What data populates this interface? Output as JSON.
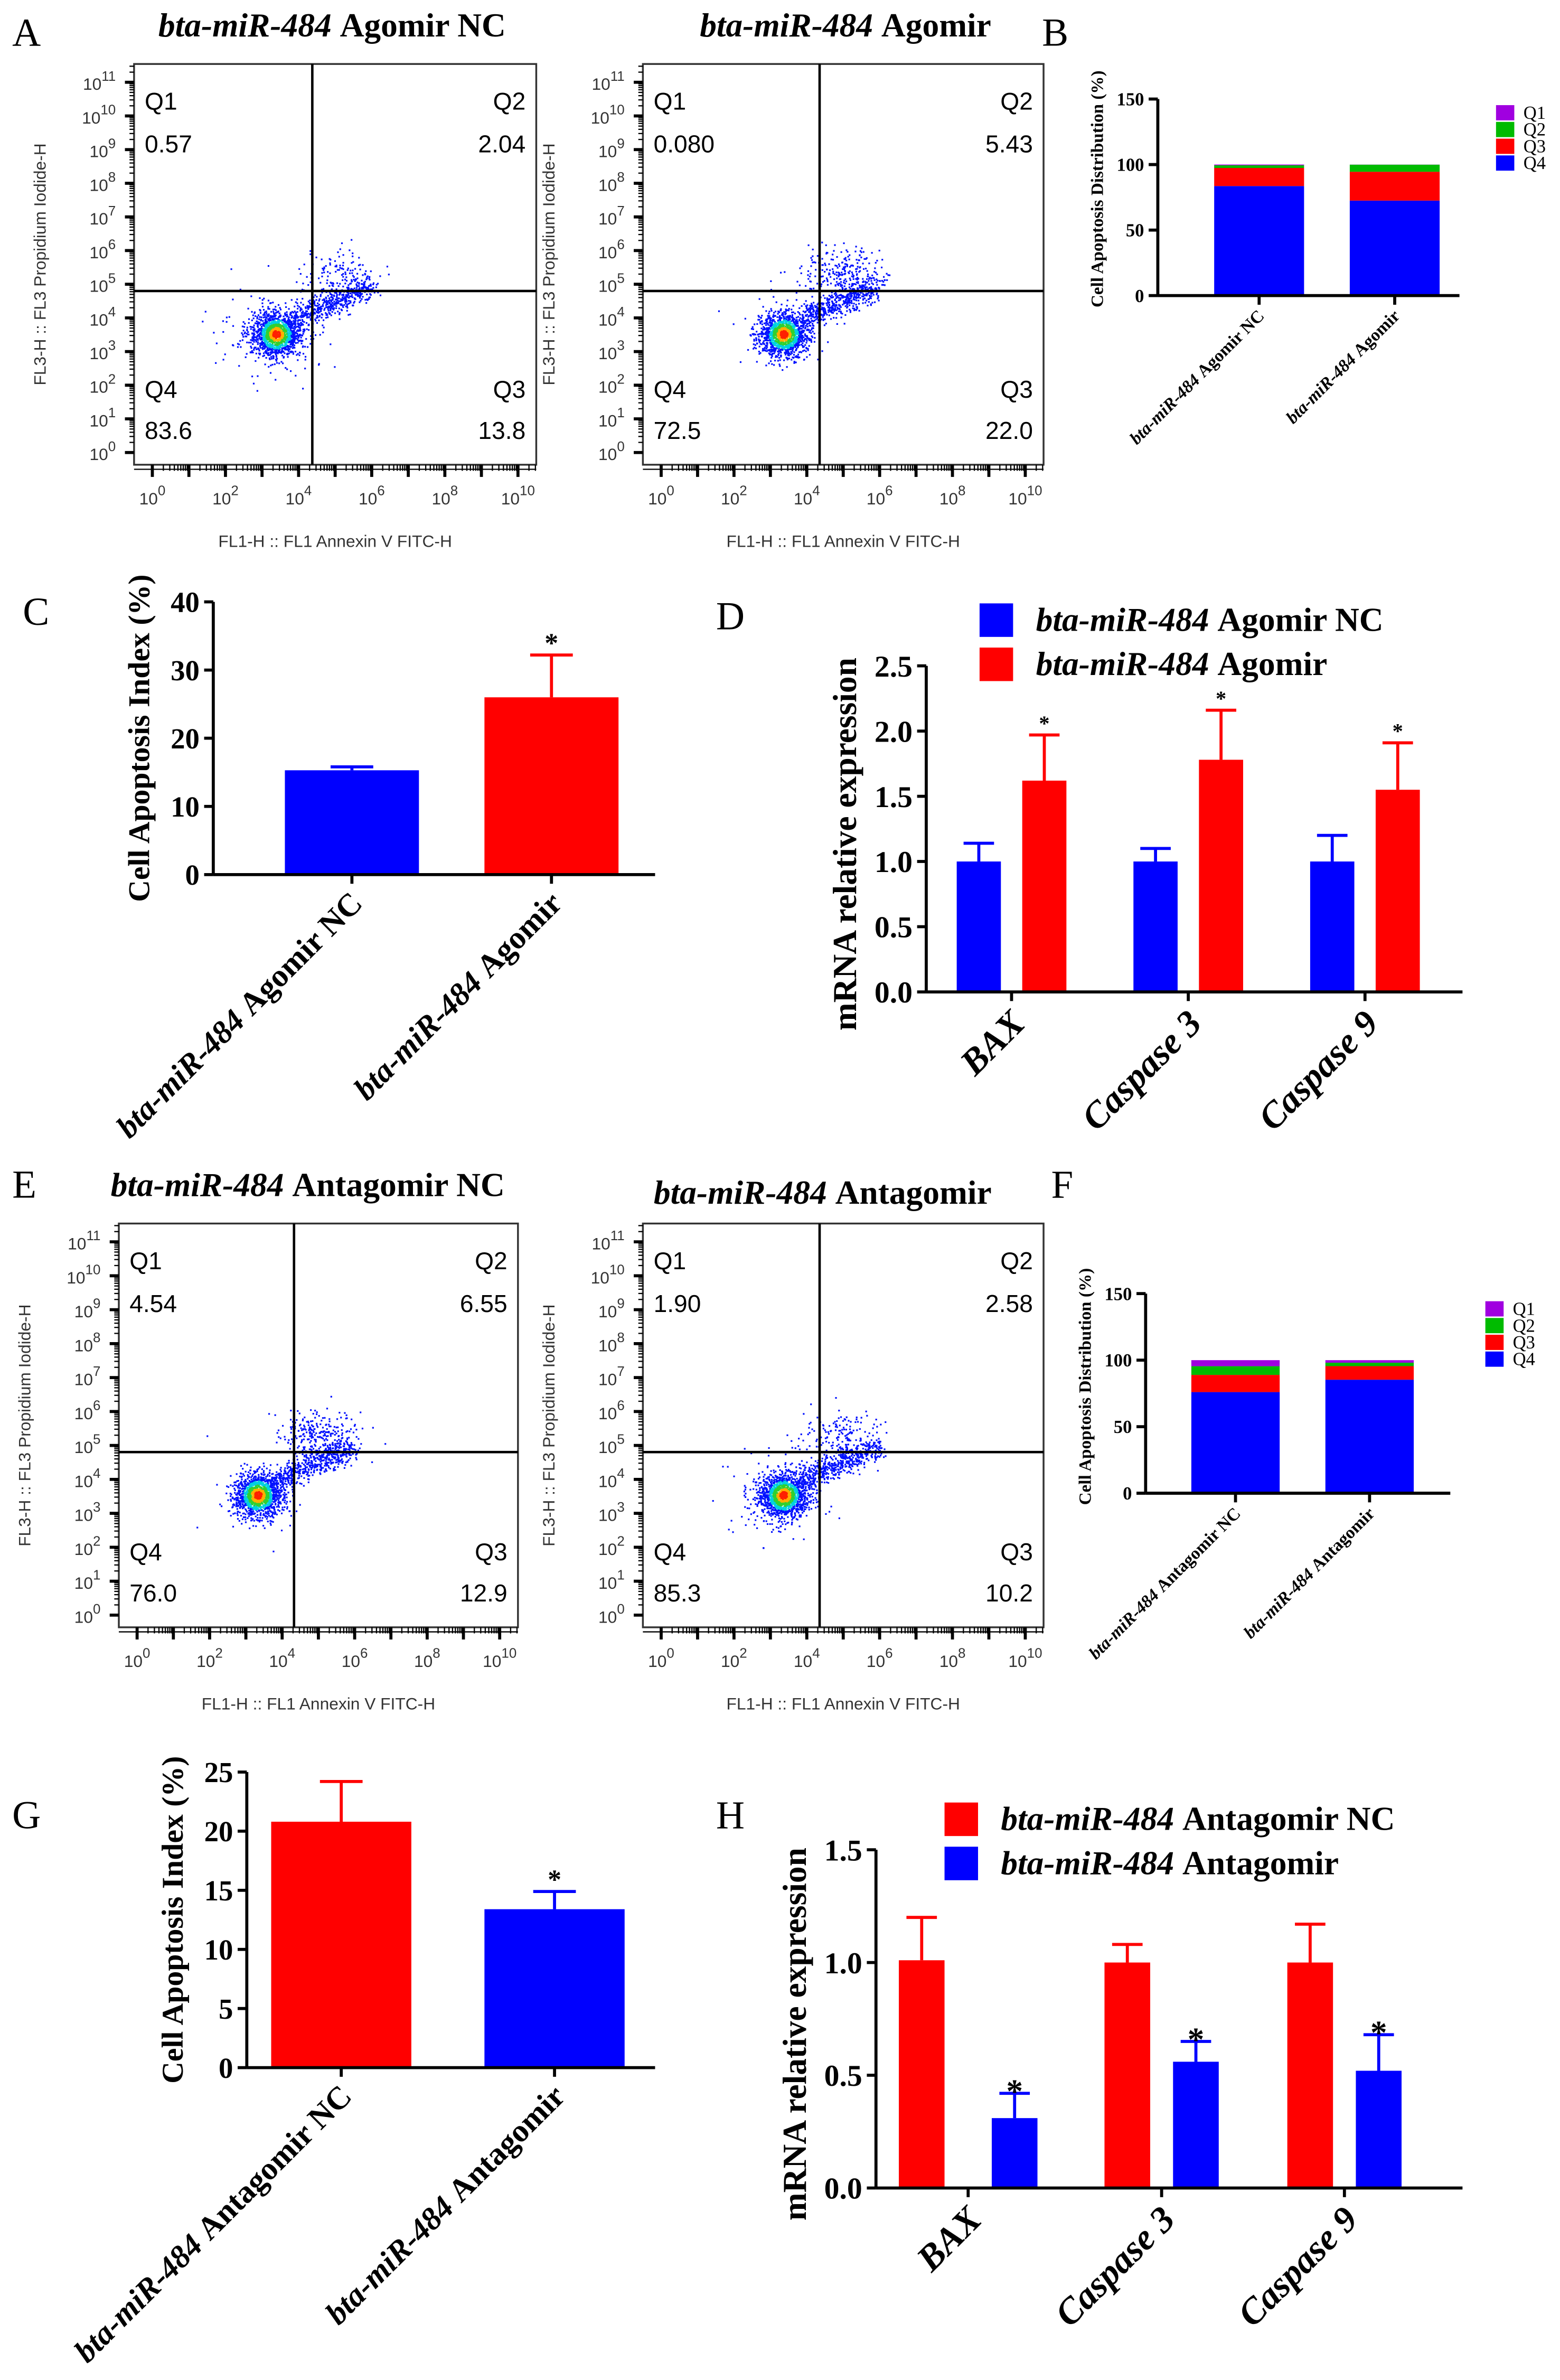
{
  "gene_prefix": "bta-miR-484",
  "panels": [
    "A",
    "B",
    "C",
    "D",
    "E",
    "F",
    "G",
    "H"
  ],
  "flow_axes": {
    "x_ticks": [
      {
        "base": "10",
        "exp": "0"
      },
      {
        "base": "10",
        "exp": "2"
      },
      {
        "base": "10",
        "exp": "4"
      },
      {
        "base": "10",
        "exp": "6"
      },
      {
        "base": "10",
        "exp": "8"
      },
      {
        "base": "10",
        "exp": "10"
      }
    ],
    "y_ticks": [
      {
        "base": "10",
        "exp": "0"
      },
      {
        "base": "10",
        "exp": "1"
      },
      {
        "base": "10",
        "exp": "2"
      },
      {
        "base": "10",
        "exp": "3"
      },
      {
        "base": "10",
        "exp": "4"
      },
      {
        "base": "10",
        "exp": "5"
      },
      {
        "base": "10",
        "exp": "6"
      },
      {
        "base": "10",
        "exp": "7"
      },
      {
        "base": "10",
        "exp": "8"
      },
      {
        "base": "10",
        "exp": "9"
      },
      {
        "base": "10",
        "exp": "10"
      },
      {
        "base": "10",
        "exp": "11"
      }
    ],
    "xlabel": "FL1-H :: FL1 Annexin V FITC-H",
    "ylabel": "FL3-H :: FL3 Propidium Iodide-H"
  },
  "chart_data": [
    {
      "type": "scatter",
      "title_suffix": "Agomir NC",
      "quadrants": [
        {
          "name": "Q1",
          "value": "0.57"
        },
        {
          "name": "Q2",
          "value": "2.04"
        },
        {
          "name": "Q3",
          "value": "13.8"
        },
        {
          "name": "Q4",
          "value": "83.6"
        }
      ]
    },
    {
      "type": "scatter",
      "title_suffix": "Agomir",
      "quadrants": [
        {
          "name": "Q1",
          "value": "0.080"
        },
        {
          "name": "Q2",
          "value": "5.43"
        },
        {
          "name": "Q3",
          "value": "22.0"
        },
        {
          "name": "Q4",
          "value": "72.5"
        }
      ]
    },
    {
      "type": "bar",
      "stacked": true,
      "ylabel": "Cell Apoptosis Distribution (%)",
      "ylim": [
        0,
        150
      ],
      "y_ticks": [
        "0",
        "50",
        "100",
        "150"
      ],
      "categories": [
        "Agomir NC",
        "Agomir"
      ],
      "series": [
        {
          "name": "Q4",
          "color": "#0000ff",
          "values": [
            83.6,
            72.5
          ]
        },
        {
          "name": "Q3",
          "color": "#ff0000",
          "values": [
            13.8,
            22.0
          ]
        },
        {
          "name": "Q2",
          "color": "#00bb00",
          "values": [
            2.04,
            5.43
          ]
        },
        {
          "name": "Q1",
          "color": "#a000e0",
          "values": [
            0.57,
            0.08
          ]
        }
      ],
      "legend": [
        "Q1",
        "Q2",
        "Q3",
        "Q4"
      ],
      "legend_position": "top-right"
    },
    {
      "type": "bar",
      "ylabel": "Cell Apoptosis Index (%)",
      "ylim": [
        0,
        40
      ],
      "y_ticks": [
        "0",
        "10",
        "20",
        "30",
        "40"
      ],
      "categories": [
        "Agomir NC",
        "Agomir"
      ],
      "values": [
        15.3,
        26.0
      ],
      "errors": [
        0.5,
        6.2
      ],
      "colors": [
        "#0000ff",
        "#ff0000"
      ],
      "significance": [
        "",
        "*"
      ]
    },
    {
      "type": "bar",
      "ylabel": "mRNA relative expression",
      "ylim": [
        0,
        2.5
      ],
      "y_ticks": [
        "0.0",
        "0.5",
        "1.0",
        "1.5",
        "2.0",
        "2.5"
      ],
      "categories": [
        "BAX",
        "Caspase 3",
        "Caspase 9"
      ],
      "series": [
        {
          "name": "Agomir NC",
          "color": "#0000ff",
          "values": [
            1.0,
            1.0,
            1.0
          ],
          "errors": [
            0.14,
            0.1,
            0.2
          ],
          "significance": [
            "",
            "",
            ""
          ]
        },
        {
          "name": "Agomir",
          "color": "#ff0000",
          "values": [
            1.62,
            1.78,
            1.55
          ],
          "errors": [
            0.35,
            0.38,
            0.36
          ],
          "significance": [
            "*",
            "*",
            "*"
          ]
        }
      ],
      "legend_position": "top"
    },
    {
      "type": "scatter",
      "title_suffix": "Antagomir NC",
      "quadrants": [
        {
          "name": "Q1",
          "value": "4.54"
        },
        {
          "name": "Q2",
          "value": "6.55"
        },
        {
          "name": "Q3",
          "value": "12.9"
        },
        {
          "name": "Q4",
          "value": "76.0"
        }
      ]
    },
    {
      "type": "scatter",
      "title_suffix": "Antagomir",
      "quadrants": [
        {
          "name": "Q1",
          "value": "1.90"
        },
        {
          "name": "Q2",
          "value": "2.58"
        },
        {
          "name": "Q3",
          "value": "10.2"
        },
        {
          "name": "Q4",
          "value": "85.3"
        }
      ]
    },
    {
      "type": "bar",
      "stacked": true,
      "ylabel": "Cell Apoptosis Distribution (%)",
      "ylim": [
        0,
        150
      ],
      "y_ticks": [
        "0",
        "50",
        "100",
        "150"
      ],
      "categories": [
        "Antagomir NC",
        "Antagomir"
      ],
      "series": [
        {
          "name": "Q4",
          "color": "#0000ff",
          "values": [
            76.0,
            85.3
          ]
        },
        {
          "name": "Q3",
          "color": "#ff0000",
          "values": [
            12.9,
            10.2
          ]
        },
        {
          "name": "Q2",
          "color": "#00bb00",
          "values": [
            6.55,
            2.58
          ]
        },
        {
          "name": "Q1",
          "color": "#a000e0",
          "values": [
            4.54,
            1.9
          ]
        }
      ],
      "legend": [
        "Q1",
        "Q2",
        "Q3",
        "Q4"
      ],
      "legend_position": "top-right"
    },
    {
      "type": "bar",
      "ylabel": "Cell Apoptosis Index (%)",
      "ylim": [
        0,
        25
      ],
      "y_ticks": [
        "0",
        "5",
        "10",
        "15",
        "20",
        "25"
      ],
      "categories": [
        "Antagomir NC",
        "Antagomir"
      ],
      "values": [
        20.8,
        13.4
      ],
      "errors": [
        3.4,
        1.5
      ],
      "colors": [
        "#ff0000",
        "#0000ff"
      ],
      "significance": [
        "",
        "*"
      ]
    },
    {
      "type": "bar",
      "ylabel": "mRNA relative expression",
      "ylim": [
        0,
        1.5
      ],
      "y_ticks": [
        "0.0",
        "0.5",
        "1.0",
        "1.5"
      ],
      "categories": [
        "BAX",
        "Caspase 3",
        "Caspase 9"
      ],
      "series": [
        {
          "name": "Antagomir NC",
          "color": "#ff0000",
          "values": [
            1.01,
            1.0,
            1.0
          ],
          "errors": [
            0.19,
            0.08,
            0.17
          ],
          "significance": [
            "",
            "",
            ""
          ]
        },
        {
          "name": "Antagomir",
          "color": "#0000ff",
          "values": [
            0.31,
            0.56,
            0.52
          ],
          "errors": [
            0.11,
            0.09,
            0.16
          ],
          "significance": [
            "*",
            "*",
            "*"
          ]
        }
      ],
      "legend_position": "top"
    }
  ]
}
